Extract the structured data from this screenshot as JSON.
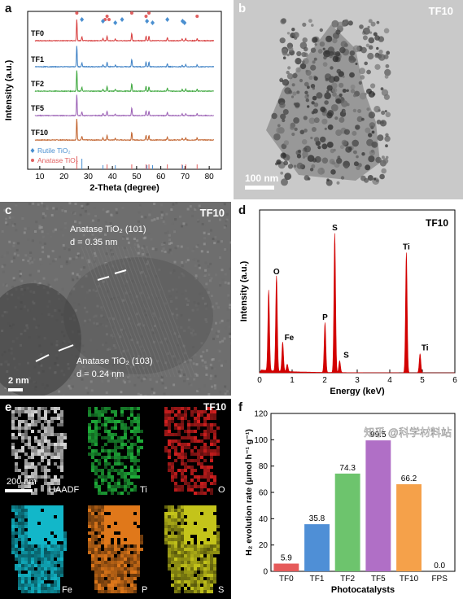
{
  "panels": {
    "a": {
      "label": "a",
      "samples": [
        "TF10",
        "TF5",
        "TF2",
        "TF1",
        "TF0"
      ],
      "colors": [
        "#c0602a",
        "#9a5fb4",
        "#3aa63a",
        "#3b7fc4",
        "#d73b3b"
      ],
      "legend": [
        {
          "label": "Rutile TiO₂",
          "color": "#4a8fd0"
        },
        {
          "label": "Anatase TiO₂",
          "color": "#e06060"
        }
      ]
    },
    "b": {
      "label": "b",
      "tag": "TF10",
      "scale": "100 nm"
    },
    "c": {
      "label": "c",
      "tag": "TF10",
      "ann1_title": "Anatase TiO₂ (101)",
      "ann1_d": "d = 0.35 nm",
      "ann2_title": "Anatase TiO₂ (103)",
      "ann2_d": "d = 0.24 nm",
      "scale": "2 nm"
    },
    "d": {
      "label": "d",
      "tag": "TF10"
    },
    "e": {
      "label": "e",
      "tag": "TF10",
      "scale": "200 nm",
      "tiles": [
        "HAADF",
        "Ti",
        "O",
        "Fe",
        "P",
        "S"
      ]
    },
    "f": {
      "label": "f"
    }
  },
  "chart_data": [
    {
      "type": "line",
      "title": "",
      "xlabel": "2-Theta (degree)",
      "ylabel": "Intensity (a.u.)",
      "xlim": [
        5,
        85
      ],
      "xticks": [
        10,
        20,
        30,
        40,
        50,
        60,
        70,
        80
      ],
      "series": [
        {
          "name": "TF10",
          "offset": 4
        },
        {
          "name": "TF5",
          "offset": 3
        },
        {
          "name": "TF2",
          "offset": 2
        },
        {
          "name": "TF1",
          "offset": 1
        },
        {
          "name": "TF0",
          "offset": 0
        }
      ],
      "peaks": [
        {
          "x": 25.3,
          "h": 1.0
        },
        {
          "x": 27.4,
          "h": 0.18
        },
        {
          "x": 36.1,
          "h": 0.1
        },
        {
          "x": 37.8,
          "h": 0.22
        },
        {
          "x": 41.2,
          "h": 0.08
        },
        {
          "x": 48.0,
          "h": 0.35
        },
        {
          "x": 53.9,
          "h": 0.22
        },
        {
          "x": 55.1,
          "h": 0.22
        },
        {
          "x": 62.7,
          "h": 0.15
        },
        {
          "x": 68.8,
          "h": 0.09
        },
        {
          "x": 70.3,
          "h": 0.1
        },
        {
          "x": 75.0,
          "h": 0.1
        }
      ],
      "markers_anatase": [
        25.3,
        37.0,
        37.8,
        38.6,
        48.0,
        53.9,
        55.1,
        75.0
      ],
      "markers_rutile": [
        27.4,
        36.1,
        41.2,
        44.0,
        54.3,
        56.6,
        62.7,
        69.0,
        69.8
      ],
      "ref_anatase": [
        25.3,
        37.8,
        48.0,
        53.9,
        55.1,
        62.7,
        68.8,
        70.3,
        75.0
      ],
      "ref_rutile": [
        27.4,
        36.1,
        41.2,
        54.3,
        56.6,
        69.0
      ]
    },
    {
      "type": "area",
      "title": "",
      "xlabel": "Energy (keV)",
      "ylabel": "Intensity (a.u.)",
      "xlim": [
        0,
        6
      ],
      "xticks": [
        0,
        1,
        2,
        3,
        4,
        5,
        6
      ],
      "color": "#d20000",
      "peaks": [
        {
          "x": 0.28,
          "h": 0.55,
          "label": ""
        },
        {
          "x": 0.52,
          "h": 0.65,
          "label": "O"
        },
        {
          "x": 0.71,
          "h": 0.2,
          "label": "Fe"
        },
        {
          "x": 0.85,
          "h": 0.05,
          "label": ""
        },
        {
          "x": 2.01,
          "h": 0.34,
          "label": "P"
        },
        {
          "x": 2.31,
          "h": 0.95,
          "label": "S"
        },
        {
          "x": 2.46,
          "h": 0.08,
          "label": "S"
        },
        {
          "x": 4.51,
          "h": 0.82,
          "label": "Ti"
        },
        {
          "x": 4.93,
          "h": 0.13,
          "label": "Ti"
        }
      ]
    },
    {
      "type": "bar",
      "title": "",
      "xlabel": "Photocatalysts",
      "ylabel": "H₂ evolution rate (μmol h⁻¹ g⁻¹)",
      "ylim": [
        0,
        120
      ],
      "yticks": [
        0,
        20,
        40,
        60,
        80,
        100,
        120
      ],
      "categories": [
        "TF0",
        "TF1",
        "TF2",
        "TF5",
        "TF10",
        "FPS"
      ],
      "values": [
        5.9,
        35.8,
        74.3,
        99.5,
        66.2,
        0.0
      ],
      "value_labels": [
        "5.9",
        "35.8",
        "74.3",
        "99.5",
        "66.2",
        "0.0"
      ],
      "colors": [
        "#e65a5a",
        "#4f8fd6",
        "#6dc46d",
        "#b06fc6",
        "#f5a14a",
        "#999999"
      ],
      "watermark": "知乎 @科学材料站"
    }
  ]
}
